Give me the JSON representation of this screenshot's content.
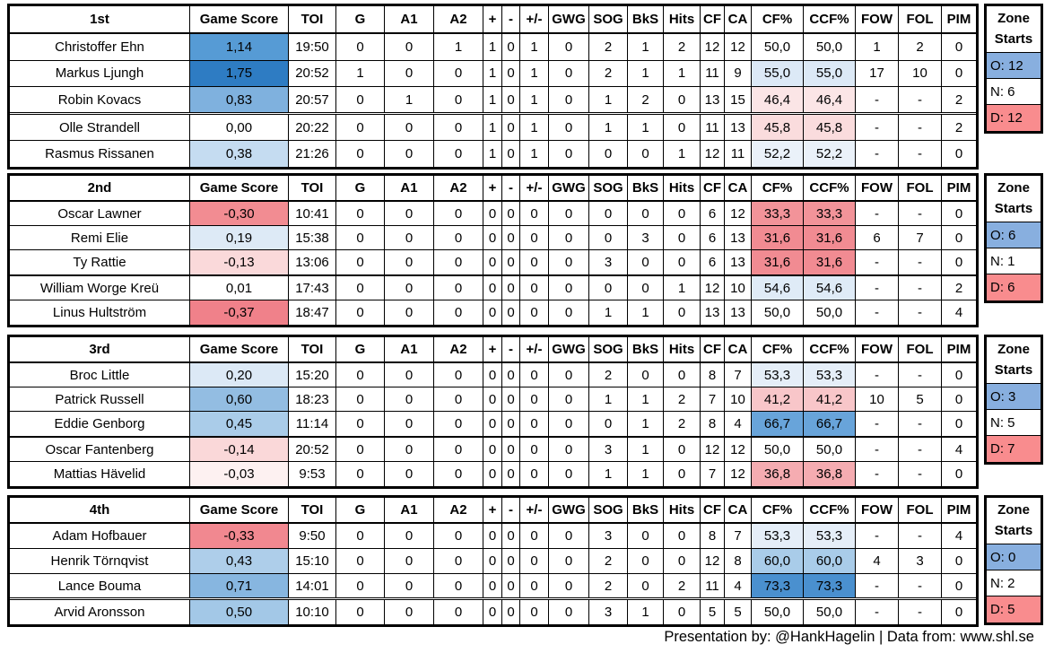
{
  "shared": {
    "stat_headers": [
      "Game Score",
      "TOI",
      "G",
      "A1",
      "A2",
      "+",
      "-",
      "+/-",
      "GWG",
      "SOG",
      "BkS",
      "Hits",
      "CF",
      "CA",
      "CF%",
      "CCF%",
      "FOW",
      "FOL",
      "PIM"
    ],
    "zone_header_line1": "Zone",
    "zone_header_line2": "Starts"
  },
  "colors": {
    "zone_offensive_bg": "#88AFDF",
    "zone_neutral_bg": "#FFFFFF",
    "zone_defensive_bg": "#F98C8E"
  },
  "groups": [
    {
      "label": "1st",
      "rows": [
        {
          "cells": [
            "Christoffer Ehn",
            "1,14",
            "19:50",
            "0",
            "0",
            "1",
            "1",
            "0",
            "1",
            "0",
            "2",
            "1",
            "2",
            "12",
            "12",
            "50,0",
            "50,0",
            "1",
            "2",
            "0"
          ],
          "gs_bg": "#569BD5",
          "cf_bg": ""
        },
        {
          "cells": [
            "Markus Ljungh",
            "1,75",
            "20:52",
            "1",
            "0",
            "0",
            "1",
            "0",
            "1",
            "0",
            "2",
            "1",
            "1",
            "11",
            "9",
            "55,0",
            "55,0",
            "17",
            "10",
            "0"
          ],
          "gs_bg": "#2E7CC3",
          "cf_bg": "#DCE9F6"
        },
        {
          "cells": [
            "Robin Kovacs",
            "0,83",
            "20:57",
            "0",
            "1",
            "0",
            "1",
            "0",
            "1",
            "0",
            "1",
            "2",
            "0",
            "13",
            "15",
            "46,4",
            "46,4",
            "-",
            "-",
            "2"
          ],
          "gs_bg": "#7FB1DE",
          "cf_bg": "#FBE5E6"
        },
        null,
        {
          "cells": [
            "Olle Strandell",
            "0,00",
            "20:22",
            "0",
            "0",
            "0",
            "1",
            "0",
            "1",
            "0",
            "1",
            "1",
            "0",
            "11",
            "13",
            "45,8",
            "45,8",
            "-",
            "-",
            "2"
          ],
          "gs_bg": "",
          "cf_bg": "#FADCDD"
        },
        {
          "cells": [
            "Rasmus Rissanen",
            "0,38",
            "21:26",
            "0",
            "0",
            "0",
            "1",
            "0",
            "1",
            "0",
            "0",
            "0",
            "1",
            "12",
            "11",
            "52,2",
            "52,2",
            "-",
            "-",
            "0"
          ],
          "gs_bg": "#C5DCF1",
          "cf_bg": "#EAF1F9"
        }
      ],
      "zone_starts": [
        {
          "text": "O: 12",
          "bg": "#88AFDF"
        },
        {
          "text": "N: 6",
          "bg": ""
        },
        {
          "text": "D: 12",
          "bg": "#F98C8E"
        }
      ]
    },
    {
      "label": "2nd",
      "rows": [
        {
          "cells": [
            "Oscar Lawner",
            "-0,30",
            "10:41",
            "0",
            "0",
            "0",
            "0",
            "0",
            "0",
            "0",
            "0",
            "0",
            "0",
            "6",
            "12",
            "33,3",
            "33,3",
            "-",
            "-",
            "0"
          ],
          "gs_bg": "#F28C92",
          "cf_bg": "#F29399"
        },
        {
          "cells": [
            "Remi Elie",
            "0,19",
            "15:38",
            "0",
            "0",
            "0",
            "0",
            "0",
            "0",
            "0",
            "0",
            "3",
            "0",
            "6",
            "13",
            "31,6",
            "31,6",
            "6",
            "7",
            "0"
          ],
          "gs_bg": "#DDEAF6",
          "cf_bg": "#F18B92"
        },
        {
          "cells": [
            "Ty Rattie",
            "-0,13",
            "13:06",
            "0",
            "0",
            "0",
            "0",
            "0",
            "0",
            "0",
            "3",
            "0",
            "0",
            "6",
            "13",
            "31,6",
            "31,6",
            "-",
            "-",
            "0"
          ],
          "gs_bg": "#FAD9DA",
          "cf_bg": "#F18B92"
        },
        null,
        {
          "cells": [
            "William Worge Kreü",
            "0,01",
            "17:43",
            "0",
            "0",
            "0",
            "0",
            "0",
            "0",
            "0",
            "0",
            "0",
            "1",
            "12",
            "10",
            "54,6",
            "54,6",
            "-",
            "-",
            "2"
          ],
          "gs_bg": "",
          "cf_bg": "#DFEBF7"
        },
        {
          "cells": [
            "Linus Hultström",
            "-0,37",
            "18:47",
            "0",
            "0",
            "0",
            "0",
            "0",
            "0",
            "0",
            "1",
            "1",
            "0",
            "13",
            "13",
            "50,0",
            "50,0",
            "-",
            "-",
            "4"
          ],
          "gs_bg": "#F0818A",
          "cf_bg": ""
        }
      ],
      "zone_starts": [
        {
          "text": "O: 6",
          "bg": "#88AFDF"
        },
        {
          "text": "N: 1",
          "bg": ""
        },
        {
          "text": "D: 6",
          "bg": "#F98C8E"
        }
      ]
    },
    {
      "label": "3rd",
      "rows": [
        {
          "cells": [
            "Broc Little",
            "0,20",
            "15:20",
            "0",
            "0",
            "0",
            "0",
            "0",
            "0",
            "0",
            "2",
            "0",
            "0",
            "8",
            "7",
            "53,3",
            "53,3",
            "-",
            "-",
            "0"
          ],
          "gs_bg": "#DCE9F6",
          "cf_bg": "#E5EEF8"
        },
        {
          "cells": [
            "Patrick Russell",
            "0,60",
            "18:23",
            "0",
            "0",
            "0",
            "0",
            "0",
            "0",
            "0",
            "1",
            "1",
            "2",
            "7",
            "10",
            "41,2",
            "41,2",
            "10",
            "5",
            "0"
          ],
          "gs_bg": "#93BDE2",
          "cf_bg": "#F8C6C9"
        },
        {
          "cells": [
            "Eddie Genborg",
            "0,45",
            "11:14",
            "0",
            "0",
            "0",
            "0",
            "0",
            "0",
            "0",
            "0",
            "1",
            "2",
            "8",
            "4",
            "66,7",
            "66,7",
            "-",
            "-",
            "0"
          ],
          "gs_bg": "#AACCE9",
          "cf_bg": "#68A4DA"
        },
        null,
        {
          "cells": [
            "Oscar Fantenberg",
            "-0,14",
            "20:52",
            "0",
            "0",
            "0",
            "0",
            "0",
            "0",
            "0",
            "3",
            "1",
            "0",
            "12",
            "12",
            "50,0",
            "50,0",
            "-",
            "-",
            "4"
          ],
          "gs_bg": "#FAD8D9",
          "cf_bg": ""
        },
        {
          "cells": [
            "Mattias Hävelid",
            "-0,03",
            "9:53",
            "0",
            "0",
            "0",
            "0",
            "0",
            "0",
            "0",
            "1",
            "1",
            "0",
            "7",
            "12",
            "36,8",
            "36,8",
            "-",
            "-",
            "0"
          ],
          "gs_bg": "#FDF1F1",
          "cf_bg": "#F5ACB1"
        }
      ],
      "zone_starts": [
        {
          "text": "O: 3",
          "bg": "#88AFDF"
        },
        {
          "text": "N: 5",
          "bg": ""
        },
        {
          "text": "D: 7",
          "bg": "#F98C8E"
        }
      ]
    },
    {
      "label": "4th",
      "rows": [
        {
          "cells": [
            "Adam Hofbauer",
            "-0,33",
            "9:50",
            "0",
            "0",
            "0",
            "0",
            "0",
            "0",
            "0",
            "3",
            "0",
            "0",
            "8",
            "7",
            "53,3",
            "53,3",
            "-",
            "-",
            "4"
          ],
          "gs_bg": "#F18890",
          "cf_bg": "#E5EEF8"
        },
        {
          "cells": [
            "Henrik Törnqvist",
            "0,43",
            "15:10",
            "0",
            "0",
            "0",
            "0",
            "0",
            "0",
            "0",
            "2",
            "0",
            "0",
            "12",
            "8",
            "60,0",
            "60,0",
            "4",
            "3",
            "0"
          ],
          "gs_bg": "#AECEEA",
          "cf_bg": "#A9CCE9"
        },
        {
          "cells": [
            "Lance Bouma",
            "0,71",
            "14:01",
            "0",
            "0",
            "0",
            "0",
            "0",
            "0",
            "0",
            "2",
            "0",
            "2",
            "11",
            "4",
            "73,3",
            "73,3",
            "-",
            "-",
            "0"
          ],
          "gs_bg": "#87B6E0",
          "cf_bg": "#4A90CF"
        },
        null,
        {
          "cells": [
            "Arvid Aronsson",
            "0,50",
            "10:10",
            "0",
            "0",
            "0",
            "0",
            "0",
            "0",
            "0",
            "3",
            "1",
            "0",
            "5",
            "5",
            "50,0",
            "50,0",
            "-",
            "-",
            "0"
          ],
          "gs_bg": "#A3C8E7",
          "cf_bg": ""
        }
      ],
      "zone_starts": [
        {
          "text": "O: 0",
          "bg": "#88AFDF"
        },
        {
          "text": "N: 2",
          "bg": ""
        },
        {
          "text": "D: 5",
          "bg": "#F98C8E"
        }
      ]
    }
  ],
  "footer": {
    "text": "Presentation by: @HankHagelin | Data from: www.shl.se"
  }
}
